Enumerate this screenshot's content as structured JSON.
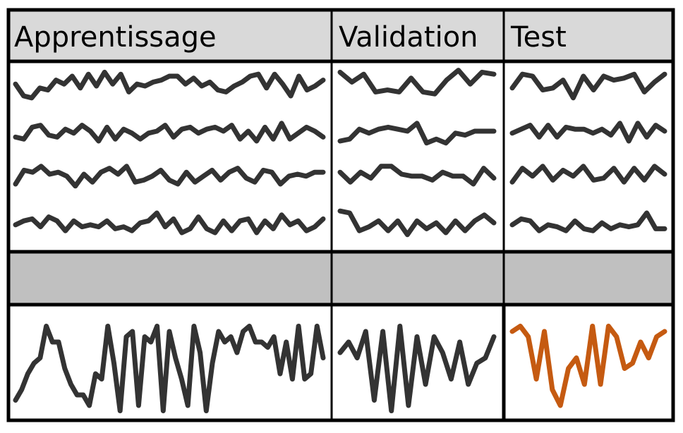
{
  "headers": {
    "train": "Apprentissage",
    "validation": "Validation",
    "test": "Test"
  },
  "colors": {
    "border": "#000000",
    "header_bg": "#d9d9d9",
    "separator_bg": "#c0c0c0",
    "line": "#333333",
    "highlight": "#c55a11",
    "cell_bg": "#ffffff"
  },
  "sequences": {
    "train": [
      [
        0.55,
        0.25,
        0.2,
        0.45,
        0.4,
        0.65,
        0.55,
        0.75,
        0.45,
        0.8,
        0.5,
        0.85,
        0.55,
        0.8,
        0.35,
        0.55,
        0.5,
        0.6,
        0.65,
        0.75,
        0.75,
        0.55,
        0.7,
        0.5,
        0.6,
        0.4,
        0.35,
        0.5,
        0.6,
        0.75,
        0.8,
        0.45,
        0.8,
        0.55,
        0.25,
        0.75,
        0.4,
        0.5,
        0.65
      ],
      [
        0.35,
        0.3,
        0.6,
        0.65,
        0.4,
        0.35,
        0.55,
        0.45,
        0.65,
        0.5,
        0.25,
        0.6,
        0.3,
        0.55,
        0.45,
        0.3,
        0.45,
        0.5,
        0.65,
        0.35,
        0.55,
        0.6,
        0.45,
        0.55,
        0.6,
        0.5,
        0.65,
        0.3,
        0.5,
        0.25,
        0.6,
        0.3,
        0.7,
        0.3,
        0.45,
        0.6,
        0.5,
        0.35
      ],
      [
        0.25,
        0.6,
        0.55,
        0.7,
        0.5,
        0.55,
        0.45,
        0.2,
        0.5,
        0.3,
        0.55,
        0.65,
        0.5,
        0.7,
        0.3,
        0.35,
        0.45,
        0.6,
        0.35,
        0.25,
        0.55,
        0.3,
        0.45,
        0.6,
        0.35,
        0.55,
        0.65,
        0.4,
        0.3,
        0.6,
        0.55,
        0.25,
        0.45,
        0.5,
        0.45,
        0.55,
        0.55
      ],
      [
        0.45,
        0.55,
        0.6,
        0.4,
        0.65,
        0.55,
        0.3,
        0.55,
        0.4,
        0.45,
        0.4,
        0.55,
        0.35,
        0.4,
        0.3,
        0.5,
        0.55,
        0.75,
        0.4,
        0.6,
        0.25,
        0.35,
        0.65,
        0.35,
        0.25,
        0.55,
        0.3,
        0.55,
        0.6,
        0.25,
        0.55,
        0.35,
        0.7,
        0.45,
        0.55,
        0.3,
        0.4,
        0.6
      ]
    ],
    "validation": [
      [
        0.85,
        0.6,
        0.8,
        0.35,
        0.4,
        0.35,
        0.7,
        0.35,
        0.3,
        0.65,
        0.9,
        0.55,
        0.85,
        0.8
      ],
      [
        0.25,
        0.3,
        0.55,
        0.45,
        0.55,
        0.6,
        0.55,
        0.5,
        0.7,
        0.2,
        0.3,
        0.2,
        0.45,
        0.4,
        0.5,
        0.5,
        0.5
      ],
      [
        0.55,
        0.3,
        0.55,
        0.4,
        0.7,
        0.7,
        0.5,
        0.45,
        0.45,
        0.35,
        0.55,
        0.45,
        0.45,
        0.25,
        0.65,
        0.4
      ],
      [
        0.8,
        0.75,
        0.3,
        0.4,
        0.55,
        0.3,
        0.55,
        0.2,
        0.55,
        0.35,
        0.5,
        0.25,
        0.55,
        0.3,
        0.55,
        0.7,
        0.5
      ]
    ],
    "test": [
      [
        0.45,
        0.8,
        0.75,
        0.4,
        0.45,
        0.65,
        0.2,
        0.75,
        0.4,
        0.75,
        0.65,
        0.7,
        0.8,
        0.35,
        0.6,
        0.8
      ],
      [
        0.45,
        0.55,
        0.65,
        0.35,
        0.65,
        0.35,
        0.6,
        0.55,
        0.55,
        0.45,
        0.55,
        0.4,
        0.7,
        0.25,
        0.7,
        0.35,
        0.65,
        0.5
      ],
      [
        0.3,
        0.65,
        0.45,
        0.7,
        0.35,
        0.6,
        0.45,
        0.7,
        0.35,
        0.4,
        0.65,
        0.3,
        0.65,
        0.35,
        0.7,
        0.5
      ],
      [
        0.45,
        0.6,
        0.55,
        0.3,
        0.45,
        0.4,
        0.3,
        0.55,
        0.35,
        0.3,
        0.5,
        0.35,
        0.45,
        0.4,
        0.45,
        0.75,
        0.35,
        0.35
      ]
    ],
    "bottom_train": [
      0.15,
      0.25,
      0.4,
      0.5,
      0.55,
      0.85,
      0.7,
      0.7,
      0.45,
      0.3,
      0.2,
      0.2,
      0.1,
      0.4,
      0.35,
      0.85,
      0.5,
      0.05,
      0.75,
      0.8,
      0.1,
      0.75,
      0.7,
      0.85,
      0.05,
      0.8,
      0.55,
      0.35,
      0.1,
      0.85,
      0.6,
      0.05,
      0.5,
      0.8,
      0.7,
      0.75,
      0.6,
      0.8,
      0.85,
      0.7,
      0.7,
      0.65,
      0.75,
      0.4,
      0.7,
      0.35,
      0.85,
      0.35,
      0.4,
      0.85,
      0.55
    ]
  },
  "bottom_validation": [
    0.6,
    0.7,
    0.55,
    0.8,
    0.15,
    0.8,
    0.05,
    0.85,
    0.1,
    0.75,
    0.3,
    0.75,
    0.6,
    0.35,
    0.7,
    0.3,
    0.5,
    0.55,
    0.75
  ],
  "bottom_test": [
    0.8,
    0.85,
    0.75,
    0.35,
    0.8,
    0.25,
    0.1,
    0.45,
    0.55,
    0.3,
    0.85,
    0.3,
    0.85,
    0.75,
    0.45,
    0.5,
    0.7,
    0.55,
    0.75,
    0.8
  ]
}
